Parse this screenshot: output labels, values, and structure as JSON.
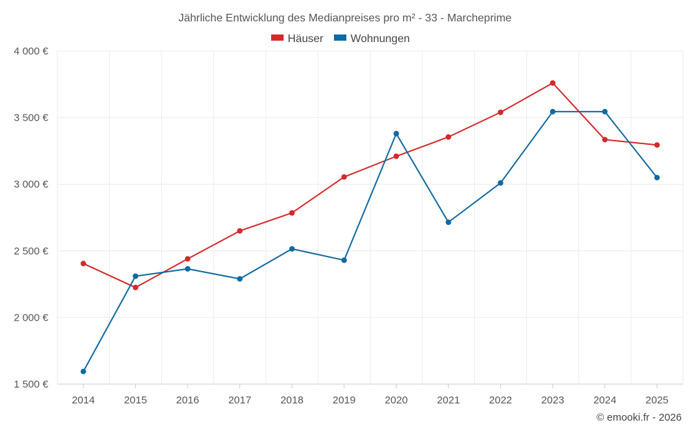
{
  "chart_data": {
    "type": "line",
    "title": "Jährliche Entwicklung des Medianpreises pro m² - 33 - Marcheprime",
    "categories": [
      "2014",
      "2015",
      "2016",
      "2017",
      "2018",
      "2019",
      "2020",
      "2021",
      "2022",
      "2023",
      "2024",
      "2025"
    ],
    "series": [
      {
        "name": "Häuser",
        "color": "#d42a2a",
        "values": [
          2405,
          2225,
          2440,
          2650,
          2785,
          3055,
          3210,
          3355,
          3540,
          3760,
          3335,
          3295
        ]
      },
      {
        "name": "Wohnungen",
        "color": "#0f6aa0",
        "values": [
          1595,
          2310,
          2365,
          2290,
          2515,
          2430,
          3380,
          2715,
          3010,
          3545,
          3545,
          3050
        ]
      }
    ],
    "ylim": [
      1500,
      4000
    ],
    "yticks": [
      1500,
      2000,
      2500,
      3000,
      3500,
      4000
    ],
    "ytick_labels": [
      "1 500 €",
      "2 000 €",
      "2 500 €",
      "3 000 €",
      "3 500 €",
      "4 000 €"
    ],
    "xlabel": "",
    "ylabel": "",
    "legend": "top-center",
    "grid": true
  },
  "credit": "© emooki.fr - 2026"
}
